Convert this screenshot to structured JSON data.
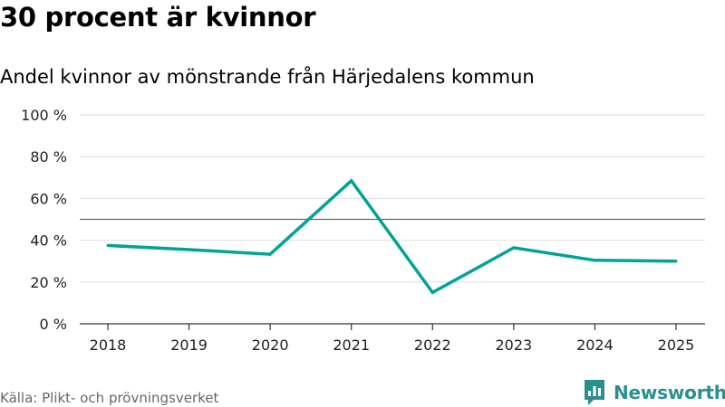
{
  "header": {
    "title": "30 procent är kvinnor",
    "subtitle": "Andel kvinnor av mönstrande från Härjedalens kommun"
  },
  "footer": {
    "source": "Källa: Plikt- och prövningsverket",
    "brand_name": "Newsworthy",
    "brand_icon": "newsworthy-logo-icon"
  },
  "colors": {
    "line": "#00a396",
    "grid": "#dddddd",
    "reference": "#666666",
    "axis": "#333333",
    "brand": "#2a8f8f"
  },
  "chart_data": {
    "type": "line",
    "title": "30 procent är kvinnor",
    "subtitle": "Andel kvinnor av mönstrande från Härjedalens kommun",
    "xlabel": "",
    "ylabel": "",
    "x": [
      "2018",
      "2019",
      "2020",
      "2021",
      "2022",
      "2023",
      "2024",
      "2025"
    ],
    "series": [
      {
        "values": [
          37.5,
          35.5,
          33.3,
          68.5,
          15.0,
          36.4,
          30.4,
          30.0
        ]
      }
    ],
    "reference_line": 50,
    "ylim": [
      0,
      100
    ],
    "yticks": [
      0,
      20,
      40,
      60,
      80,
      100
    ],
    "ytick_labels": [
      "0 %",
      "20 %",
      "40 %",
      "60 %",
      "80 %",
      "100 %"
    ],
    "grid": true,
    "legend": "none"
  }
}
